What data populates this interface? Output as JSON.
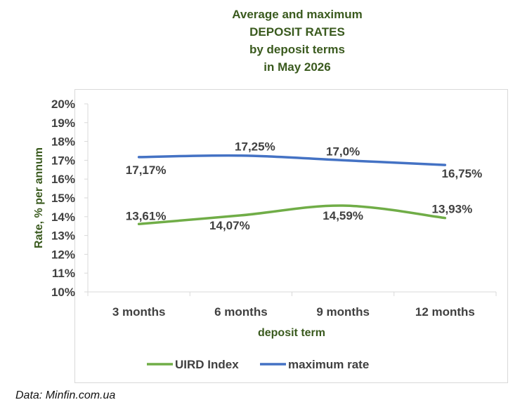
{
  "chart_data": {
    "type": "line",
    "title_lines": [
      "Average and maximum",
      "DEPOSIT RATES",
      "by deposit terms",
      "in May 2026"
    ],
    "categories": [
      "3 months",
      "6 months",
      "9 months",
      "12 months"
    ],
    "series": [
      {
        "name": "UIRD Index",
        "color": "#70ad47",
        "values": [
          13.61,
          14.07,
          14.59,
          13.93
        ],
        "labels": [
          "13,61%",
          "14,07%",
          "14,59%",
          "13,93%"
        ]
      },
      {
        "name": "maximum rate",
        "color": "#4472c4",
        "values": [
          17.17,
          17.25,
          17.0,
          16.75
        ],
        "labels": [
          "17,17%",
          "17,25%",
          "17,0%",
          "16,75%"
        ]
      }
    ],
    "xlabel": "deposit term",
    "ylabel": "Rate, % per annum",
    "ylim": [
      10,
      20
    ],
    "yticks": [
      "10%",
      "11%",
      "12%",
      "13%",
      "14%",
      "15%",
      "16%",
      "17%",
      "18%",
      "19%",
      "20%"
    ],
    "grid": false,
    "legend": "bottom",
    "smooth": true
  },
  "source": "Data: Minfin.com.ua"
}
